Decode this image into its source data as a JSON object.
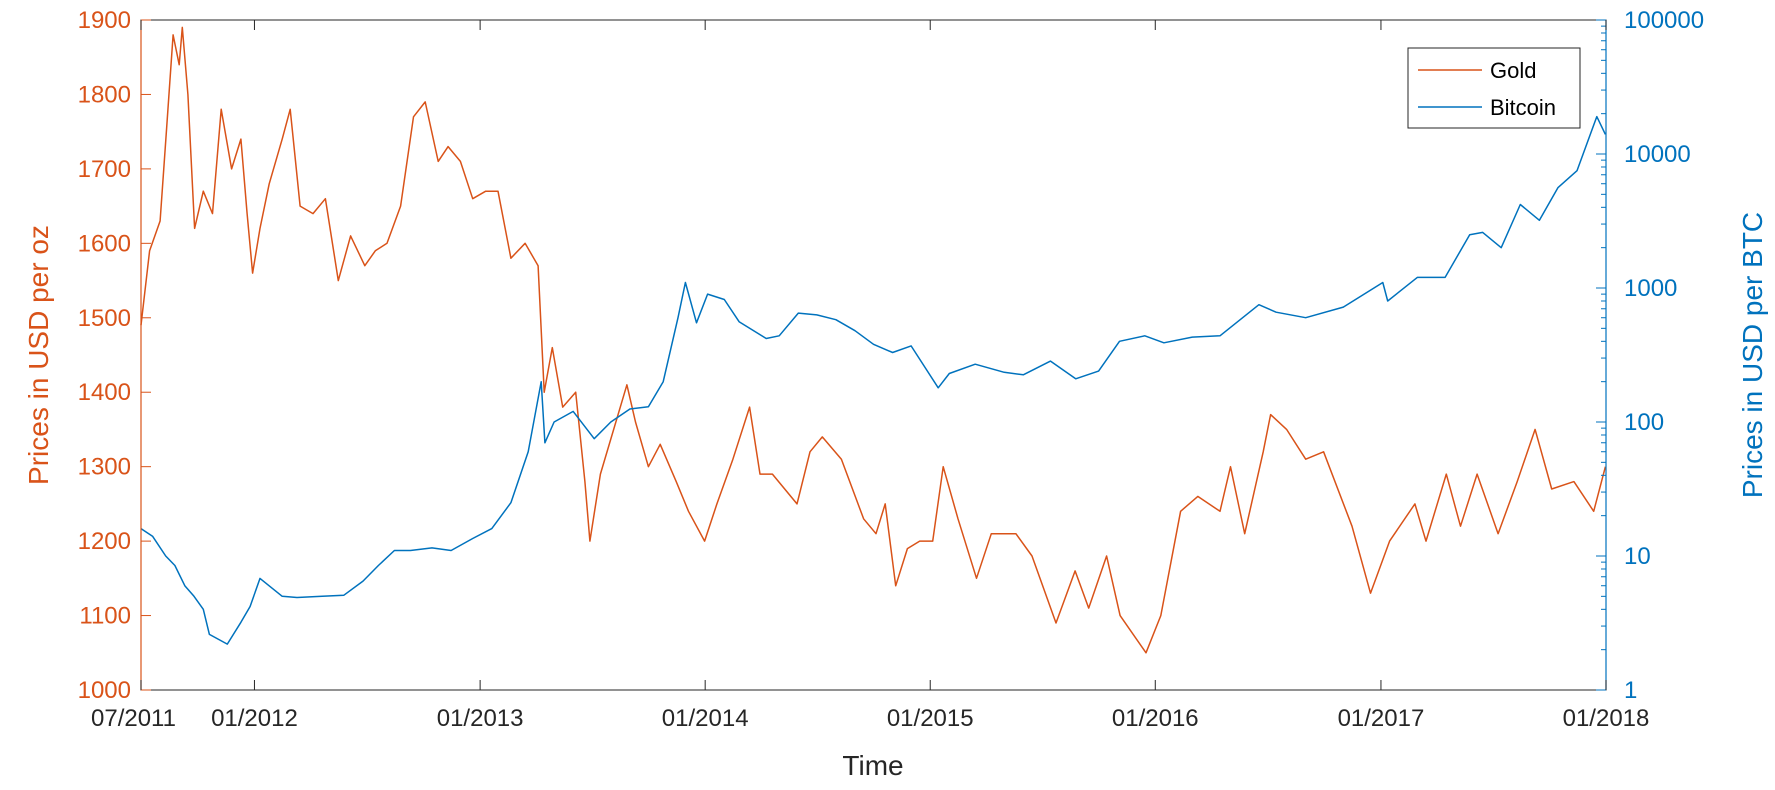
{
  "chart_data": {
    "type": "line",
    "xlabel": "Time",
    "x_ticks": [
      "07/2011",
      "01/2012",
      "01/2013",
      "01/2014",
      "01/2015",
      "01/2016",
      "01/2017",
      "01/2018"
    ],
    "y_left": {
      "label": "Prices in USD per oz",
      "ylim": [
        1000,
        1900
      ],
      "ticks": [
        "1000",
        "1100",
        "1200",
        "1300",
        "1400",
        "1500",
        "1600",
        "1700",
        "1800",
        "1900"
      ],
      "color": "#D95319"
    },
    "y_right": {
      "label": "Prices in USD per BTC",
      "scale": "log",
      "ylim": [
        1,
        100000
      ],
      "ticks": [
        "1",
        "10",
        "100",
        "1000",
        "10000",
        "100000"
      ],
      "color": "#0072BD"
    },
    "grid": false,
    "legend": {
      "position": "top-right",
      "entries": [
        "Gold",
        "Bitcoin"
      ]
    },
    "series": [
      {
        "name": "Gold",
        "axis": "left",
        "color": "#D95319",
        "points": [
          [
            "2011-07-01",
            1490
          ],
          [
            "2011-07-15",
            1590
          ],
          [
            "2011-08-01",
            1630
          ],
          [
            "2011-08-12",
            1760
          ],
          [
            "2011-08-22",
            1880
          ],
          [
            "2011-09-01",
            1840
          ],
          [
            "2011-09-06",
            1890
          ],
          [
            "2011-09-15",
            1800
          ],
          [
            "2011-09-26",
            1620
          ],
          [
            "2011-10-10",
            1670
          ],
          [
            "2011-10-25",
            1640
          ],
          [
            "2011-11-08",
            1780
          ],
          [
            "2011-11-25",
            1700
          ],
          [
            "2011-12-10",
            1740
          ],
          [
            "2011-12-20",
            1640
          ],
          [
            "2011-12-29",
            1560
          ],
          [
            "2012-01-10",
            1620
          ],
          [
            "2012-01-25",
            1680
          ],
          [
            "2012-02-15",
            1740
          ],
          [
            "2012-02-28",
            1780
          ],
          [
            "2012-03-15",
            1650
          ],
          [
            "2012-04-05",
            1640
          ],
          [
            "2012-04-25",
            1660
          ],
          [
            "2012-05-16",
            1550
          ],
          [
            "2012-06-05",
            1610
          ],
          [
            "2012-06-28",
            1570
          ],
          [
            "2012-07-15",
            1590
          ],
          [
            "2012-08-03",
            1600
          ],
          [
            "2012-08-25",
            1650
          ],
          [
            "2012-09-15",
            1770
          ],
          [
            "2012-10-04",
            1790
          ],
          [
            "2012-10-25",
            1710
          ],
          [
            "2012-11-10",
            1730
          ],
          [
            "2012-11-30",
            1710
          ],
          [
            "2012-12-20",
            1660
          ],
          [
            "2013-01-10",
            1670
          ],
          [
            "2013-01-30",
            1670
          ],
          [
            "2013-02-20",
            1580
          ],
          [
            "2013-03-15",
            1600
          ],
          [
            "2013-04-05",
            1570
          ],
          [
            "2013-04-15",
            1400
          ],
          [
            "2013-04-28",
            1460
          ],
          [
            "2013-05-15",
            1380
          ],
          [
            "2013-06-05",
            1400
          ],
          [
            "2013-06-20",
            1280
          ],
          [
            "2013-06-28",
            1200
          ],
          [
            "2013-07-15",
            1290
          ],
          [
            "2013-08-27",
            1410
          ],
          [
            "2013-09-10",
            1360
          ],
          [
            "2013-10-01",
            1300
          ],
          [
            "2013-10-20",
            1330
          ],
          [
            "2013-11-15",
            1280
          ],
          [
            "2013-12-05",
            1240
          ],
          [
            "2013-12-31",
            1200
          ],
          [
            "2014-01-20",
            1250
          ],
          [
            "2014-02-15",
            1310
          ],
          [
            "2014-03-14",
            1380
          ],
          [
            "2014-03-31",
            1290
          ],
          [
            "2014-04-20",
            1290
          ],
          [
            "2014-05-30",
            1250
          ],
          [
            "2014-06-20",
            1320
          ],
          [
            "2014-07-10",
            1340
          ],
          [
            "2014-08-10",
            1310
          ],
          [
            "2014-09-15",
            1230
          ],
          [
            "2014-10-05",
            1210
          ],
          [
            "2014-10-20",
            1250
          ],
          [
            "2014-11-06",
            1140
          ],
          [
            "2014-11-25",
            1190
          ],
          [
            "2014-12-15",
            1200
          ],
          [
            "2015-01-05",
            1200
          ],
          [
            "2015-01-22",
            1300
          ],
          [
            "2015-02-15",
            1230
          ],
          [
            "2015-03-17",
            1150
          ],
          [
            "2015-04-10",
            1210
          ],
          [
            "2015-05-20",
            1210
          ],
          [
            "2015-06-15",
            1180
          ],
          [
            "2015-07-24",
            1090
          ],
          [
            "2015-08-24",
            1160
          ],
          [
            "2015-09-15",
            1110
          ],
          [
            "2015-10-14",
            1180
          ],
          [
            "2015-11-05",
            1100
          ],
          [
            "2015-12-17",
            1050
          ],
          [
            "2016-01-10",
            1100
          ],
          [
            "2016-02-11",
            1240
          ],
          [
            "2016-03-10",
            1260
          ],
          [
            "2016-04-15",
            1240
          ],
          [
            "2016-05-02",
            1300
          ],
          [
            "2016-05-25",
            1210
          ],
          [
            "2016-06-24",
            1320
          ],
          [
            "2016-07-06",
            1370
          ],
          [
            "2016-08-01",
            1350
          ],
          [
            "2016-09-01",
            1310
          ],
          [
            "2016-09-30",
            1320
          ],
          [
            "2016-11-15",
            1220
          ],
          [
            "2016-12-15",
            1130
          ],
          [
            "2017-01-15",
            1200
          ],
          [
            "2017-02-25",
            1250
          ],
          [
            "2017-03-15",
            1200
          ],
          [
            "2017-04-17",
            1290
          ],
          [
            "2017-05-10",
            1220
          ],
          [
            "2017-06-06",
            1290
          ],
          [
            "2017-07-10",
            1210
          ],
          [
            "2017-08-10",
            1280
          ],
          [
            "2017-09-08",
            1350
          ],
          [
            "2017-10-05",
            1270
          ],
          [
            "2017-11-10",
            1280
          ],
          [
            "2017-12-12",
            1240
          ],
          [
            "2017-12-31",
            1300
          ]
        ]
      },
      {
        "name": "Bitcoin",
        "axis": "right",
        "color": "#0072BD",
        "points": [
          [
            "2011-07-01",
            16
          ],
          [
            "2011-07-20",
            14
          ],
          [
            "2011-08-10",
            10
          ],
          [
            "2011-08-25",
            8.5
          ],
          [
            "2011-09-10",
            6
          ],
          [
            "2011-09-25",
            5
          ],
          [
            "2011-10-10",
            4
          ],
          [
            "2011-10-20",
            2.6
          ],
          [
            "2011-11-18",
            2.2
          ],
          [
            "2011-12-10",
            3.2
          ],
          [
            "2011-12-25",
            4.2
          ],
          [
            "2012-01-10",
            6.8
          ],
          [
            "2012-02-15",
            5
          ],
          [
            "2012-03-10",
            4.9
          ],
          [
            "2012-04-20",
            5
          ],
          [
            "2012-05-25",
            5.1
          ],
          [
            "2012-06-25",
            6.5
          ],
          [
            "2012-07-20",
            8.5
          ],
          [
            "2012-08-15",
            11
          ],
          [
            "2012-09-10",
            11
          ],
          [
            "2012-10-15",
            11.5
          ],
          [
            "2012-11-15",
            11
          ],
          [
            "2012-12-20",
            13.5
          ],
          [
            "2013-01-20",
            16
          ],
          [
            "2013-02-20",
            25
          ],
          [
            "2013-03-20",
            60
          ],
          [
            "2013-04-10",
            200
          ],
          [
            "2013-04-16",
            70
          ],
          [
            "2013-05-01",
            100
          ],
          [
            "2013-06-01",
            120
          ],
          [
            "2013-07-05",
            75
          ],
          [
            "2013-08-01",
            100
          ],
          [
            "2013-09-01",
            125
          ],
          [
            "2013-10-01",
            130
          ],
          [
            "2013-10-25",
            200
          ],
          [
            "2013-11-18",
            600
          ],
          [
            "2013-11-30",
            1100
          ],
          [
            "2013-12-18",
            550
          ],
          [
            "2014-01-05",
            900
          ],
          [
            "2014-02-01",
            820
          ],
          [
            "2014-02-25",
            560
          ],
          [
            "2014-04-10",
            420
          ],
          [
            "2014-05-01",
            440
          ],
          [
            "2014-06-01",
            650
          ],
          [
            "2014-07-01",
            630
          ],
          [
            "2014-08-01",
            580
          ],
          [
            "2014-09-01",
            480
          ],
          [
            "2014-10-01",
            380
          ],
          [
            "2014-11-01",
            330
          ],
          [
            "2014-12-01",
            370
          ],
          [
            "2015-01-14",
            180
          ],
          [
            "2015-02-01",
            230
          ],
          [
            "2015-03-15",
            270
          ],
          [
            "2015-05-01",
            235
          ],
          [
            "2015-06-01",
            225
          ],
          [
            "2015-07-15",
            285
          ],
          [
            "2015-08-25",
            210
          ],
          [
            "2015-10-01",
            240
          ],
          [
            "2015-11-04",
            400
          ],
          [
            "2015-12-15",
            440
          ],
          [
            "2016-01-15",
            390
          ],
          [
            "2016-03-01",
            430
          ],
          [
            "2016-04-15",
            440
          ],
          [
            "2016-06-17",
            750
          ],
          [
            "2016-07-15",
            660
          ],
          [
            "2016-09-01",
            600
          ],
          [
            "2016-11-01",
            720
          ],
          [
            "2017-01-04",
            1100
          ],
          [
            "2017-01-12",
            800
          ],
          [
            "2017-03-01",
            1200
          ],
          [
            "2017-04-15",
            1200
          ],
          [
            "2017-05-25",
            2500
          ],
          [
            "2017-06-15",
            2600
          ],
          [
            "2017-07-15",
            2000
          ],
          [
            "2017-08-15",
            4200
          ],
          [
            "2017-09-15",
            3200
          ],
          [
            "2017-10-15",
            5600
          ],
          [
            "2017-11-15",
            7500
          ],
          [
            "2017-12-17",
            19000
          ],
          [
            "2017-12-31",
            14000
          ]
        ]
      }
    ]
  }
}
